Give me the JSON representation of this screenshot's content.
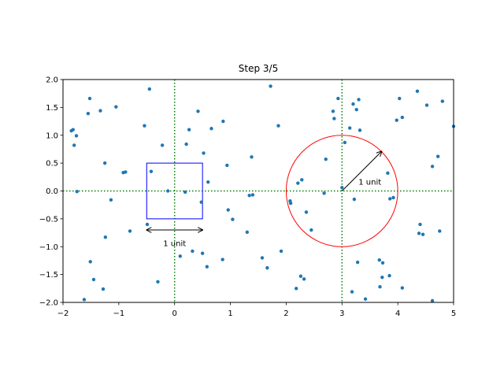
{
  "chart_data": {
    "type": "scatter",
    "title": "Step 3/5",
    "xlabel": "",
    "ylabel": "",
    "xlim": [
      -2,
      5
    ],
    "ylim": [
      -2,
      2
    ],
    "x_ticks": [
      -2,
      -1,
      0,
      1,
      2,
      3,
      4,
      5
    ],
    "y_ticks": [
      -2.0,
      -1.5,
      -1.0,
      -0.5,
      0.0,
      0.5,
      1.0,
      1.5,
      2.0
    ],
    "x_tick_labels": [
      "−2",
      "−1",
      "0",
      "1",
      "2",
      "3",
      "4",
      "5"
    ],
    "y_tick_labels": [
      "−2.0",
      "−1.5",
      "−1.0",
      "−0.5",
      "0.0",
      "0.5",
      "1.0",
      "1.5",
      "2.0"
    ],
    "grid": false,
    "point_color": "#1f77b4",
    "points": [
      [
        -1.85,
        1.08
      ],
      [
        -1.82,
        1.1
      ],
      [
        -1.8,
        0.82
      ],
      [
        -1.76,
        0.99
      ],
      [
        -1.75,
        -0.01
      ],
      [
        -1.62,
        -1.95
      ],
      [
        -1.55,
        1.39
      ],
      [
        -1.52,
        1.66
      ],
      [
        -1.51,
        -1.27
      ],
      [
        -1.45,
        -1.59
      ],
      [
        -1.33,
        1.44
      ],
      [
        -1.28,
        -1.76
      ],
      [
        -1.25,
        0.5
      ],
      [
        -1.24,
        -0.83
      ],
      [
        -1.14,
        -0.16
      ],
      [
        -1.05,
        1.51
      ],
      [
        -0.92,
        0.33
      ],
      [
        -0.88,
        0.34
      ],
      [
        -0.8,
        -0.72
      ],
      [
        -0.54,
        1.17
      ],
      [
        -0.49,
        -0.6
      ],
      [
        -0.45,
        1.83
      ],
      [
        -0.42,
        0.35
      ],
      [
        -0.3,
        -1.63
      ],
      [
        -0.22,
        0.82
      ],
      [
        -0.12,
        0.0
      ],
      [
        0.1,
        -1.17
      ],
      [
        0.19,
        -0.02
      ],
      [
        0.21,
        0.84
      ],
      [
        0.26,
        1.1
      ],
      [
        0.32,
        -1.08
      ],
      [
        0.42,
        1.43
      ],
      [
        0.48,
        -0.2
      ],
      [
        0.5,
        -1.12
      ],
      [
        0.52,
        0.68
      ],
      [
        0.58,
        -1.36
      ],
      [
        0.6,
        0.16
      ],
      [
        0.66,
        1.12
      ],
      [
        0.86,
        -1.23
      ],
      [
        0.87,
        1.25
      ],
      [
        0.94,
        0.46
      ],
      [
        0.96,
        -0.34
      ],
      [
        1.04,
        -0.51
      ],
      [
        1.3,
        -0.74
      ],
      [
        1.34,
        -0.08
      ],
      [
        1.38,
        0.61
      ],
      [
        1.4,
        -0.07
      ],
      [
        1.57,
        -1.2
      ],
      [
        1.66,
        -1.38
      ],
      [
        1.72,
        1.88
      ],
      [
        1.86,
        1.17
      ],
      [
        1.91,
        -1.08
      ],
      [
        2.07,
        -0.18
      ],
      [
        2.08,
        -0.22
      ],
      [
        2.18,
        -1.75
      ],
      [
        2.21,
        0.14
      ],
      [
        2.26,
        -1.53
      ],
      [
        2.28,
        0.2
      ],
      [
        2.32,
        -1.58
      ],
      [
        2.36,
        -0.38
      ],
      [
        2.45,
        -0.7
      ],
      [
        2.68,
        -0.04
      ],
      [
        2.71,
        0.57
      ],
      [
        2.84,
        1.43
      ],
      [
        2.86,
        1.3
      ],
      [
        2.93,
        1.66
      ],
      [
        3.0,
        0.06
      ],
      [
        3.05,
        0.87
      ],
      [
        3.14,
        1.13
      ],
      [
        3.18,
        -1.81
      ],
      [
        3.2,
        1.56
      ],
      [
        3.22,
        -0.15
      ],
      [
        3.26,
        1.46
      ],
      [
        3.28,
        -1.28
      ],
      [
        3.3,
        1.64
      ],
      [
        3.32,
        1.09
      ],
      [
        3.42,
        -1.94
      ],
      [
        3.68,
        -1.72
      ],
      [
        3.67,
        -1.24
      ],
      [
        3.72,
        -1.55
      ],
      [
        3.73,
        -1.29
      ],
      [
        3.82,
        0.32
      ],
      [
        3.85,
        -1.52
      ],
      [
        3.86,
        -0.14
      ],
      [
        3.92,
        -0.12
      ],
      [
        3.98,
        1.27
      ],
      [
        4.03,
        1.66
      ],
      [
        4.08,
        1.32
      ],
      [
        4.08,
        -1.74
      ],
      [
        4.35,
        1.79
      ],
      [
        4.38,
        -0.76
      ],
      [
        4.4,
        -0.6
      ],
      [
        4.45,
        -0.78
      ],
      [
        4.52,
        1.54
      ],
      [
        4.62,
        0.44
      ],
      [
        4.62,
        -1.97
      ],
      [
        4.72,
        0.62
      ],
      [
        4.75,
        -0.72
      ],
      [
        4.8,
        1.61
      ],
      [
        5.0,
        1.16
      ]
    ],
    "dotted_lines_color": "#008000",
    "vertical_dotted_lines_x": [
      0,
      3
    ],
    "horizontal_dotted_line_y": 0,
    "square": {
      "x0": -0.5,
      "y0": -0.5,
      "x1": 0.5,
      "y1": 0.5,
      "color": "#0000ff"
    },
    "circle": {
      "cx": 3,
      "cy": 0,
      "r": 1,
      "color": "#ff0000"
    },
    "square_arrow": {
      "x0": -0.5,
      "x1": 0.5,
      "y": -0.7,
      "label": "1 unit",
      "label_x": 0,
      "label_y": -0.93
    },
    "circle_arrow": {
      "x0": 3,
      "y0": 0,
      "x1": 3.71,
      "y1": 0.71,
      "label": "1 unit",
      "label_x": 3.5,
      "label_y": 0.17
    }
  }
}
